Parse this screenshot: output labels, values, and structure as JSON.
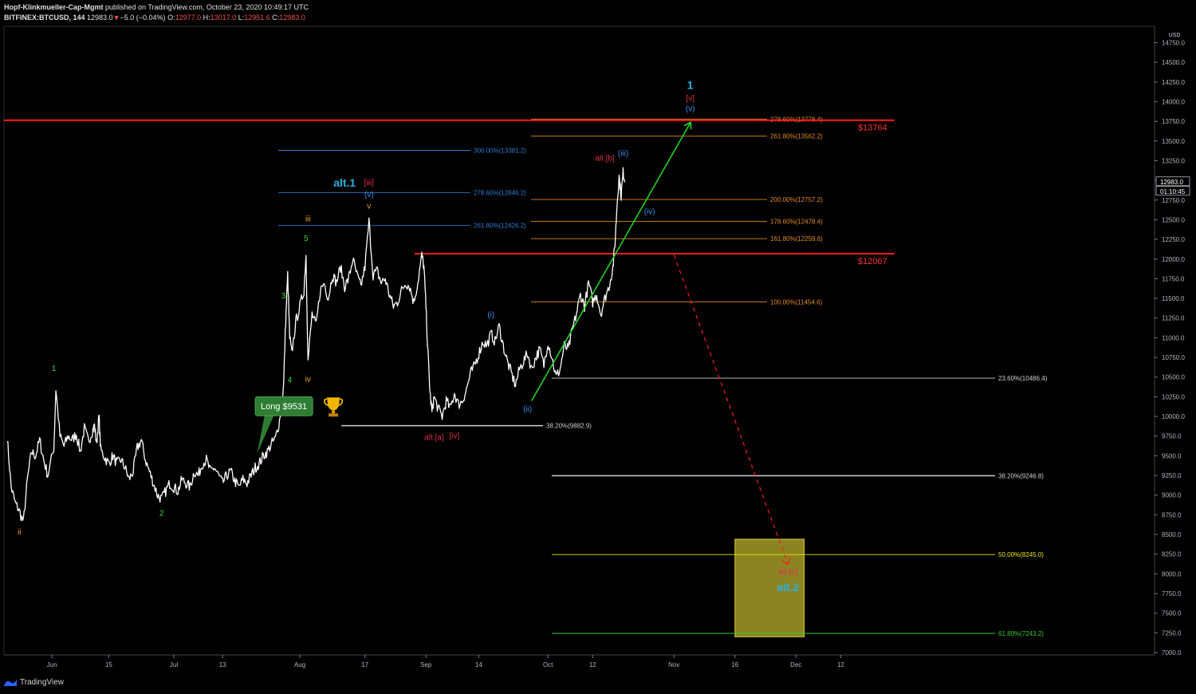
{
  "header": {
    "author": "Hopf-Klinkmueller-Cap-Mgmt",
    "published": " published on TradingView.com, October 23, 2020 10:49:17 UTC",
    "symbol": "BITFINEX:BTCUSD, 144",
    "last": "12983.0",
    "change_arrow": "▼",
    "change": "−5.0 (−0.04%)",
    "o_label": "O:",
    "o": "12977.0",
    "h_label": "H:",
    "h": "13017.0",
    "l_label": "L:",
    "l": "12951.6",
    "c_label": "C:",
    "c": "12983.0"
  },
  "footer": {
    "brand": "TradingView",
    "logo_icon": "tradingview-logo-icon"
  },
  "colors": {
    "background": "#000000",
    "candle": "#ffffff",
    "red_level": "#ff1a1a",
    "green_arrow": "#22dd22",
    "blue_fib": "#2f7bd8",
    "orange_fib": "#e38a22",
    "white_fib": "#cfcfcf",
    "yellow_fib": "#e8e800",
    "green_fib": "#33cc33",
    "target_box": "#b3a92d"
  },
  "chart_data": {
    "type": "candlestick",
    "currency": "USD",
    "yaxis_ticks": [
      7000,
      7250,
      7500,
      7750,
      8000,
      8250,
      8500,
      8750,
      9000,
      9250,
      9500,
      9750,
      10000,
      10250,
      10500,
      10750,
      11000,
      11250,
      11500,
      11750,
      12000,
      12250,
      12500,
      12750,
      13000,
      13250,
      13500,
      13750,
      14000,
      14250,
      14500,
      14750
    ],
    "ylim": [
      6900,
      14900
    ],
    "x_labels": [
      {
        "label": "Jun",
        "day": 0
      },
      {
        "label": "15",
        "day": 14
      },
      {
        "label": "Jul",
        "day": 30
      },
      {
        "label": "13",
        "day": 42
      },
      {
        "label": "Aug",
        "day": 61
      },
      {
        "label": "17",
        "day": 77
      },
      {
        "label": "Sep",
        "day": 92
      },
      {
        "label": "14",
        "day": 105
      },
      {
        "label": "Oct",
        "day": 122
      },
      {
        "label": "12",
        "day": 133
      },
      {
        "label": "Nov",
        "day": 153
      },
      {
        "label": "16",
        "day": 168
      },
      {
        "label": "Dec",
        "day": 183
      },
      {
        "label": "12",
        "day": 194
      }
    ],
    "last_price_tag": "12983.0",
    "countdown_tag": "01:10:45",
    "price_path": [
      [
        -11,
        9750
      ],
      [
        -10,
        9100
      ],
      [
        -9,
        8900
      ],
      [
        -8,
        8800
      ],
      [
        -7,
        8650
      ],
      [
        -6,
        9200
      ],
      [
        -5,
        9550
      ],
      [
        -4,
        9500
      ],
      [
        -3,
        9700
      ],
      [
        -2,
        9450
      ],
      [
        -1,
        9250
      ],
      [
        0.5,
        9600
      ],
      [
        1,
        10350
      ],
      [
        2,
        9750
      ],
      [
        3,
        9620
      ],
      [
        4,
        9750
      ],
      [
        5,
        9700
      ],
      [
        6,
        9780
      ],
      [
        7,
        9550
      ],
      [
        8,
        9850
      ],
      [
        9,
        9680
      ],
      [
        10,
        9820
      ],
      [
        10.5,
        9880
      ],
      [
        11,
        9650
      ],
      [
        11.6,
        10000
      ],
      [
        12,
        9580
      ],
      [
        13,
        9480
      ],
      [
        14,
        9400
      ],
      [
        15,
        9500
      ],
      [
        16,
        9400
      ],
      [
        17,
        9450
      ],
      [
        18,
        9350
      ],
      [
        19,
        9200
      ],
      [
        20,
        9300
      ],
      [
        21,
        9600
      ],
      [
        22,
        9700
      ],
      [
        23,
        9450
      ],
      [
        24,
        9300
      ],
      [
        25,
        9150
      ],
      [
        26,
        9000
      ],
      [
        27,
        8950
      ],
      [
        28,
        9050
      ],
      [
        29,
        9150
      ],
      [
        30,
        9100
      ],
      [
        31,
        9050
      ],
      [
        32,
        9200
      ],
      [
        33,
        9150
      ],
      [
        34,
        9100
      ],
      [
        35,
        9300
      ],
      [
        36,
        9250
      ],
      [
        37,
        9400
      ],
      [
        38,
        9450
      ],
      [
        39,
        9300
      ],
      [
        40,
        9350
      ],
      [
        41,
        9250
      ],
      [
        42,
        9150
      ],
      [
        43,
        9250
      ],
      [
        44,
        9300
      ],
      [
        45,
        9180
      ],
      [
        46,
        9100
      ],
      [
        47,
        9200
      ],
      [
        48,
        9150
      ],
      [
        49,
        9250
      ],
      [
        50,
        9350
      ],
      [
        51,
        9400
      ],
      [
        52,
        9500
      ],
      [
        53,
        9550
      ],
      [
        54,
        9650
      ],
      [
        55,
        9720
      ],
      [
        56,
        9950
      ],
      [
        57,
        10400
      ],
      [
        57.5,
        11200
      ],
      [
        58,
        11800
      ],
      [
        58.5,
        11000
      ],
      [
        59,
        10800
      ],
      [
        60,
        11200
      ],
      [
        61,
        11400
      ],
      [
        62,
        11600
      ],
      [
        62.5,
        12050
      ],
      [
        63,
        10700
      ],
      [
        64,
        11300
      ],
      [
        65,
        11150
      ],
      [
        66,
        11600
      ],
      [
        67,
        11700
      ],
      [
        68,
        11500
      ],
      [
        69,
        11800
      ],
      [
        70,
        11700
      ],
      [
        71,
        11900
      ],
      [
        72,
        11650
      ],
      [
        73,
        11750
      ],
      [
        74,
        12000
      ],
      [
        75,
        11800
      ],
      [
        76,
        11650
      ],
      [
        77,
        11900
      ],
      [
        78,
        12480
      ],
      [
        79,
        11800
      ],
      [
        80,
        11850
      ],
      [
        81,
        11700
      ],
      [
        82,
        11750
      ],
      [
        83,
        11550
      ],
      [
        84,
        11400
      ],
      [
        85,
        11450
      ],
      [
        86,
        11600
      ],
      [
        87,
        11700
      ],
      [
        88,
        11650
      ],
      [
        89,
        11450
      ],
      [
        90,
        11700
      ],
      [
        91,
        12050
      ],
      [
        91.5,
        11900
      ],
      [
        92,
        11400
      ],
      [
        92.5,
        10800
      ],
      [
        93,
        10300
      ],
      [
        93.5,
        10050
      ],
      [
        94,
        10250
      ],
      [
        95,
        10100
      ],
      [
        96,
        10000
      ],
      [
        97,
        10200
      ],
      [
        98,
        10100
      ],
      [
        99,
        10300
      ],
      [
        100,
        10150
      ],
      [
        101,
        10200
      ],
      [
        102,
        10350
      ],
      [
        103,
        10550
      ],
      [
        104,
        10650
      ],
      [
        105,
        10800
      ],
      [
        106,
        10950
      ],
      [
        107,
        10900
      ],
      [
        108,
        11050
      ],
      [
        109,
        10950
      ],
      [
        110,
        11150
      ],
      [
        111,
        10900
      ],
      [
        112,
        10700
      ],
      [
        113,
        10550
      ],
      [
        114,
        10400
      ],
      [
        115,
        10600
      ],
      [
        116,
        10700
      ],
      [
        117,
        10800
      ],
      [
        118,
        10600
      ],
      [
        119,
        10750
      ],
      [
        120,
        10850
      ],
      [
        121,
        10650
      ],
      [
        122,
        10950
      ],
      [
        123,
        10750
      ],
      [
        124,
        10500
      ],
      [
        125,
        10600
      ],
      [
        126,
        10900
      ],
      [
        127,
        10850
      ],
      [
        128,
        11100
      ],
      [
        129,
        11300
      ],
      [
        130,
        11550
      ],
      [
        131,
        11400
      ],
      [
        132,
        11700
      ],
      [
        133,
        11450
      ],
      [
        134,
        11550
      ],
      [
        135,
        11300
      ],
      [
        136,
        11500
      ],
      [
        137,
        11650
      ],
      [
        138,
        11900
      ],
      [
        138.5,
        12200
      ],
      [
        139,
        12700
      ],
      [
        139.5,
        13050
      ],
      [
        140,
        12800
      ],
      [
        140.5,
        13100
      ],
      [
        141,
        12983
      ]
    ],
    "horizontal_levels": [
      {
        "label": "$13764",
        "value": 13764,
        "color": "red"
      },
      {
        "label": "$12067",
        "value": 12067,
        "color": "red"
      }
    ],
    "fib_levels": [
      {
        "label": "300.00%(13381.2)",
        "value": 13381.2,
        "group": "blue"
      },
      {
        "label": "278.60%(12846.2)",
        "value": 12846.2,
        "group": "blue"
      },
      {
        "label": "261.80%(12426.2)",
        "value": 12426.2,
        "group": "blue"
      },
      {
        "label": "278.60%(13778.4)",
        "value": 13778.4,
        "group": "orange"
      },
      {
        "label": "261.80%(13562.2)",
        "value": 13562.2,
        "group": "orange"
      },
      {
        "label": "200.00%(12757.2)",
        "value": 12757.2,
        "group": "orange"
      },
      {
        "label": "178.60%(12478.4)",
        "value": 12478.4,
        "group": "orange"
      },
      {
        "label": "161.80%(12259.6)",
        "value": 12259.6,
        "group": "orange"
      },
      {
        "label": "100.00%(11454.6)",
        "value": 11454.6,
        "group": "orange"
      },
      {
        "label": "38.20%(9882.9)",
        "value": 9882.9,
        "group": "white"
      },
      {
        "label": "23.60%(10486.4)",
        "value": 10486.4,
        "group": "white"
      },
      {
        "label": "38.20%(9246.8)",
        "value": 9246.8,
        "group": "white"
      },
      {
        "label": "50.00%(8245.0)",
        "value": 8245.0,
        "group": "yellow"
      },
      {
        "label": "61.80%(7243.2)",
        "value": 7243.2,
        "group": "green"
      }
    ],
    "target_box": {
      "day_start": 168,
      "day_end": 185,
      "top": 8440,
      "bottom": 7200
    },
    "trend_arrow": {
      "from": [
        118,
        10200
      ],
      "to": [
        157,
        13730
      ]
    },
    "dashed_arrow": {
      "from": [
        153,
        12050
      ],
      "to": [
        181,
        8130
      ]
    },
    "annotations": [
      {
        "text": "ii",
        "day": -8,
        "price": 8500,
        "color": "orange"
      },
      {
        "text": "1",
        "day": 0.5,
        "price": 10580,
        "color": "green"
      },
      {
        "text": "2",
        "day": 27,
        "price": 8740,
        "color": "green"
      },
      {
        "text": "3",
        "day": 57,
        "price": 11500,
        "color": "green"
      },
      {
        "text": "4",
        "day": 58.5,
        "price": 10430,
        "color": "green"
      },
      {
        "text": "5",
        "day": 62.5,
        "price": 12230,
        "color": "green"
      },
      {
        "text": "iii",
        "day": 63,
        "price": 12480,
        "color": "orange"
      },
      {
        "text": "iv",
        "day": 63,
        "price": 10440,
        "color": "orange"
      },
      {
        "text": "v",
        "day": 78,
        "price": 12640,
        "color": "orange"
      },
      {
        "text": "(v)",
        "day": 78,
        "price": 12790,
        "color": "blue"
      },
      {
        "text": "[iii]",
        "day": 78,
        "price": 12940,
        "color": "crimson"
      },
      {
        "text": "alt.1",
        "day": 72,
        "price": 12920,
        "color": "cyan"
      },
      {
        "text": "(i)",
        "day": 108,
        "price": 11260,
        "color": "blue"
      },
      {
        "text": "(ii)",
        "day": 117,
        "price": 10060,
        "color": "blue"
      },
      {
        "text": "(iii)",
        "day": 140.5,
        "price": 13310,
        "color": "blue"
      },
      {
        "text": "alt.[b]",
        "day": 136,
        "price": 13250,
        "color": "crimson"
      },
      {
        "text": "(iv)",
        "day": 147,
        "price": 12570,
        "color": "blue"
      },
      {
        "text": "(v)",
        "day": 157,
        "price": 13880,
        "color": "blue"
      },
      {
        "text": "[v]",
        "day": 157,
        "price": 14010,
        "color": "crimson"
      },
      {
        "text": "1",
        "day": 157,
        "price": 14160,
        "color": "cyan"
      },
      {
        "text": "alt.[a]",
        "day": 94,
        "price": 9700,
        "color": "crimson"
      },
      {
        "text": "[iv]",
        "day": 99,
        "price": 9720,
        "color": "crimson"
      },
      {
        "text": "alt.[c]",
        "day": 181,
        "price": 8000,
        "color": "crimson"
      },
      {
        "text": "alt.2",
        "day": 181,
        "price": 7780,
        "color": "cyan"
      }
    ],
    "callout": {
      "text": "Long $9531",
      "trophy_icon": "trophy-icon",
      "day": 61,
      "price": 10130
    }
  }
}
